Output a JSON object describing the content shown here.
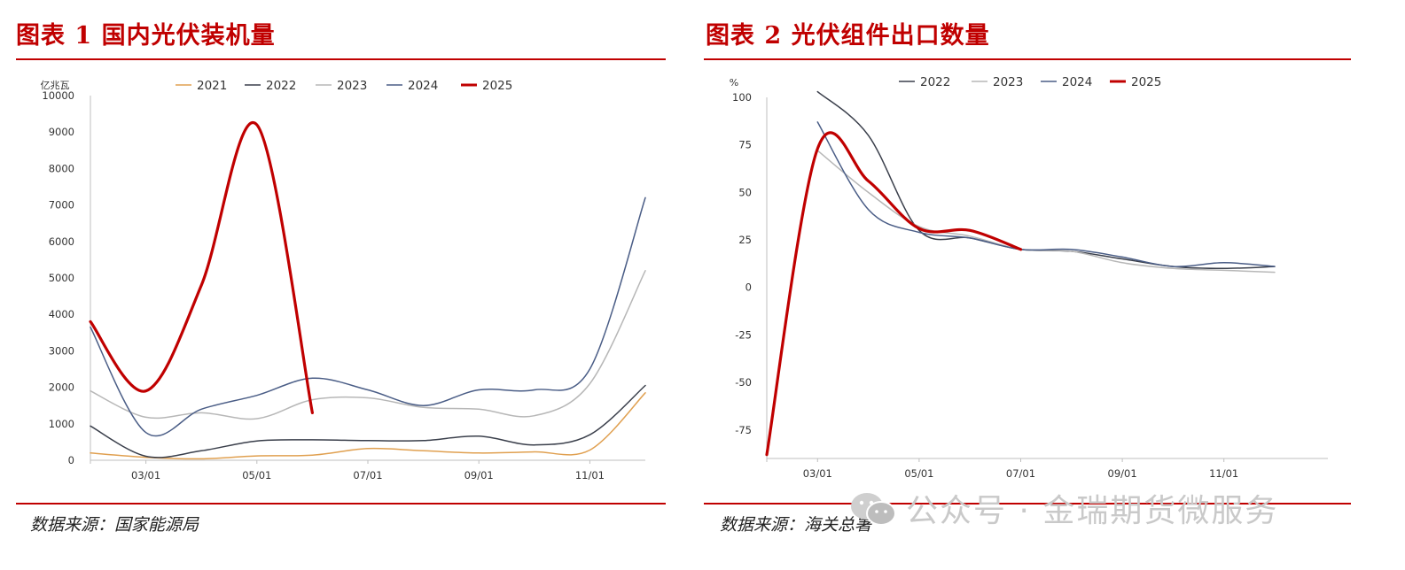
{
  "watermark": "公众号 · 金瑞期货微服务",
  "charts": [
    {
      "title": "图表 1 国内光伏装机量",
      "source": "数据来源：国家能源局",
      "chart_data": {
        "type": "line",
        "ylabel": "亿兆瓦",
        "ylim": [
          0,
          10000
        ],
        "yticks": [
          "0",
          "1000",
          "2000",
          "3000",
          "4000",
          "5000",
          "6000",
          "7000",
          "8000",
          "9000",
          "10000"
        ],
        "xticks": [
          "03/01",
          "05/01",
          "07/01",
          "09/01",
          "11/01"
        ],
        "x": [
          "02",
          "03",
          "04",
          "05",
          "06",
          "07",
          "08",
          "09",
          "10",
          "11",
          "12"
        ],
        "legend_position": "top",
        "grid": false,
        "series": [
          {
            "name": "2021",
            "color": "#e0a050",
            "width": 1.5,
            "values": [
              200,
              80,
              40,
              120,
              140,
              320,
              260,
              200,
              230,
              280,
              1850
            ]
          },
          {
            "name": "2022",
            "color": "#3a3f4b",
            "width": 1.5,
            "values": [
              940,
              110,
              260,
              530,
              560,
              540,
              540,
              660,
              420,
              700,
              2050
            ]
          },
          {
            "name": "2023",
            "color": "#b7b7b7",
            "width": 1.5,
            "values": [
              1900,
              1180,
              1300,
              1140,
              1660,
              1710,
              1450,
              1400,
              1220,
              2100,
              5200
            ]
          },
          {
            "name": "2024",
            "color": "#4a5d86",
            "width": 1.5,
            "values": [
              3650,
              760,
              1400,
              1780,
              2250,
              1930,
              1500,
              1930,
              1930,
              2500,
              7200
            ]
          },
          {
            "name": "2025",
            "color": "#c00000",
            "width": 3.2,
            "values": [
              3800,
              1900,
              4800,
              9200,
              1300,
              null,
              null,
              null,
              null,
              null,
              null
            ]
          }
        ]
      }
    },
    {
      "title": "图表 2 光伏组件出口数量",
      "source": "数据来源：海关总署",
      "chart_data": {
        "type": "line",
        "ylabel": "%",
        "ylim": [
          -90,
          100
        ],
        "yticks": [
          "-75",
          "-50",
          "-25",
          "0",
          "25",
          "50",
          "75",
          "100"
        ],
        "xticks": [
          "03/01",
          "05/01",
          "07/01",
          "09/01",
          "11/01"
        ],
        "x": [
          "02",
          "03",
          "04",
          "05",
          "06",
          "07",
          "08",
          "09",
          "10",
          "11",
          "12"
        ],
        "legend_position": "top",
        "grid": false,
        "series": [
          {
            "name": "2022",
            "color": "#3a3f4b",
            "width": 1.5,
            "values": [
              null,
              103,
              80,
              30,
              26,
              20,
              19,
              15,
              11,
              10,
              11
            ]
          },
          {
            "name": "2023",
            "color": "#b7b7b7",
            "width": 1.5,
            "values": [
              null,
              72,
              50,
              32,
              27,
              20,
              19,
              13,
              10,
              9,
              8
            ]
          },
          {
            "name": "2024",
            "color": "#4a5d86",
            "width": 1.5,
            "values": [
              null,
              87,
              41,
              29,
              26,
              20,
              20,
              16,
              11,
              13,
              11
            ]
          },
          {
            "name": "2025",
            "color": "#c00000",
            "width": 3.2,
            "values": [
              -88,
              73,
              56,
              31,
              30,
              20,
              null,
              null,
              null,
              null,
              null
            ]
          }
        ]
      }
    }
  ]
}
